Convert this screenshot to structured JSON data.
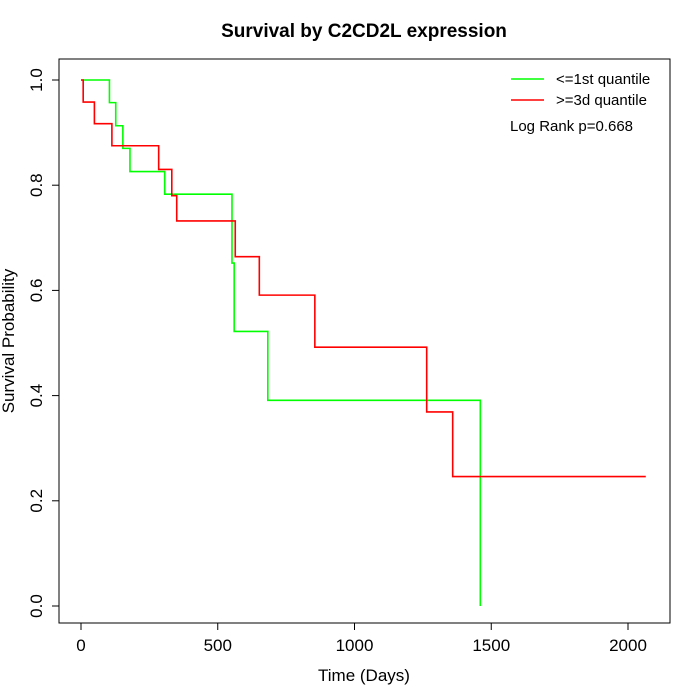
{
  "chart_data": {
    "type": "line",
    "step": true,
    "title": "Survival by C2CD2L expression",
    "xlabel": "Time (Days)",
    "ylabel": "Survival Probability",
    "xlim": [
      0,
      2070
    ],
    "ylim": [
      0,
      1
    ],
    "x_ticks": [
      0,
      500,
      1000,
      1500,
      2000
    ],
    "y_ticks": [
      0.0,
      0.2,
      0.4,
      0.6,
      0.8,
      1.0
    ],
    "x_tick_labels": [
      "0",
      "500",
      "1000",
      "1500",
      "2000"
    ],
    "y_tick_labels": [
      "0.0",
      "0.2",
      "0.4",
      "0.6",
      "0.8",
      "1.0"
    ],
    "legend_position": "top-right",
    "annotation": "Log Rank p=0.668",
    "series": [
      {
        "name": "<=1st quantile",
        "color": "#00ff00",
        "x": [
          0,
          104,
          127,
          153,
          179,
          306,
          552,
          560,
          683,
          1460,
          1460
        ],
        "y": [
          1.0,
          0.957,
          0.913,
          0.87,
          0.826,
          0.783,
          0.652,
          0.522,
          0.391,
          0.391,
          0.0
        ]
      },
      {
        "name": ">=3d quantile",
        "color": "#ff0000",
        "x": [
          0,
          8,
          49,
          113,
          284,
          332,
          350,
          564,
          652,
          855,
          1264,
          1359,
          2065
        ],
        "y": [
          1.0,
          0.958,
          0.917,
          0.875,
          0.83,
          0.78,
          0.732,
          0.664,
          0.591,
          0.492,
          0.369,
          0.246,
          0.246
        ]
      }
    ]
  }
}
